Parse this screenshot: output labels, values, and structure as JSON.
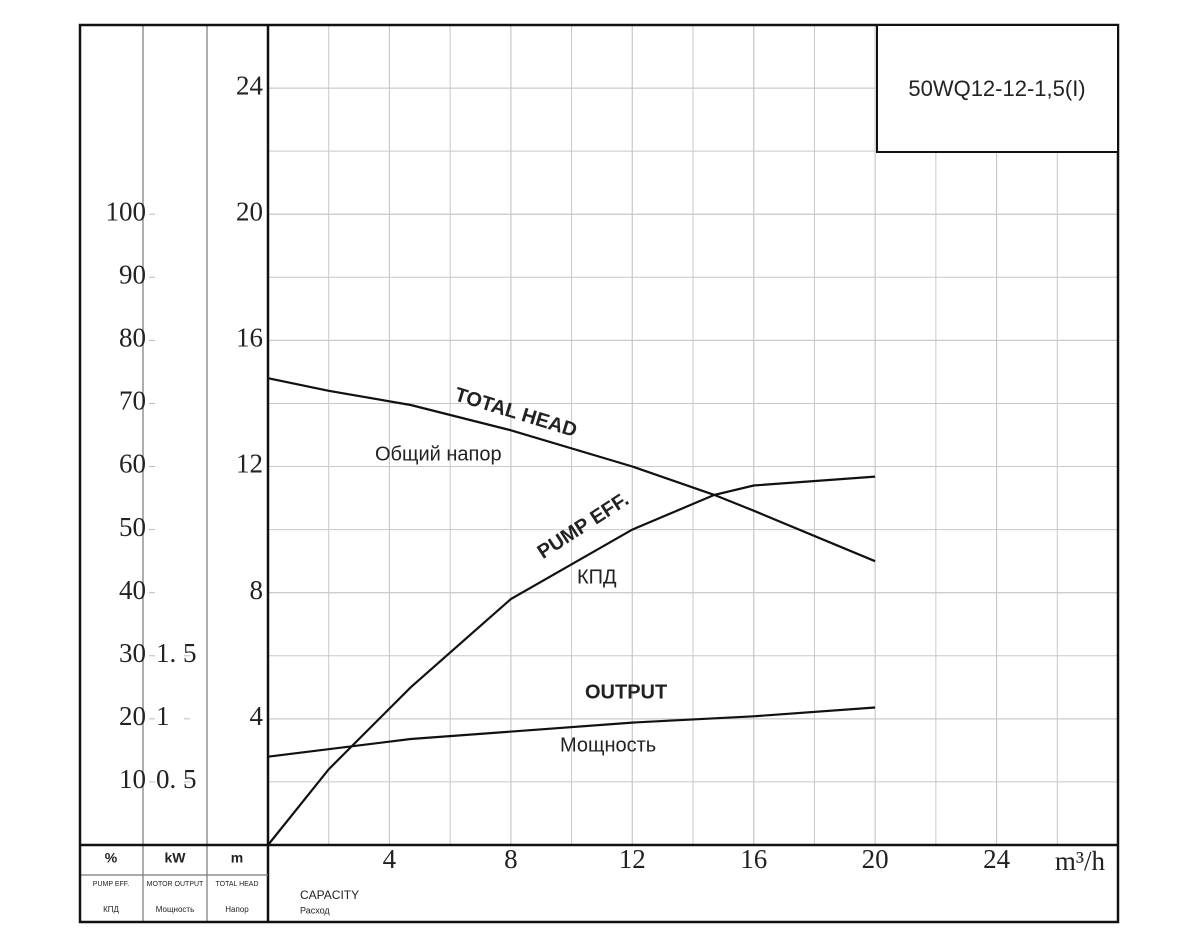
{
  "chart_data": {
    "type": "line",
    "model": "50WQ12-12-1,5(I)",
    "x_unit": "m³/h",
    "x_label": {
      "en": "CAPACITY",
      "ru": "Расход"
    },
    "y_label": {
      "unit": "m",
      "en": "TOTAL HEAD",
      "ru": "Напор"
    },
    "y2_label": {
      "unit": "%",
      "en": "PUMP EFF.",
      "ru": "КПД"
    },
    "y3_label": {
      "unit": "kW",
      "en": "MOTOR OUTPUT",
      "ru": "Мощность"
    },
    "xlim": [
      0,
      28
    ],
    "xticks": [
      4,
      8,
      12,
      16,
      20,
      24
    ],
    "ylim": [
      0,
      26
    ],
    "yticks": [
      4,
      8,
      12,
      16,
      20,
      24
    ],
    "y2lim": [
      0,
      130
    ],
    "y2ticks": [
      10,
      20,
      30,
      40,
      50,
      60,
      70,
      80,
      90,
      100
    ],
    "y3lim": [
      0,
      6.5
    ],
    "y3ticks": [
      {
        "value": 0.5,
        "label": "0. 5"
      },
      1,
      {
        "value": 1.5,
        "label": "1. 5"
      }
    ],
    "grid": true,
    "series": [
      {
        "name": "TOTAL HEAD",
        "name_ru": "Общий напор",
        "color": "#111111",
        "axis": "y",
        "x": [
          0,
          2,
          4.7,
          8,
          12,
          14.7,
          16,
          20
        ],
        "values": [
          14.8,
          14.4,
          13.95,
          13.15,
          12,
          11.1,
          10.6,
          9.0
        ]
      },
      {
        "name": "PUMP EFF.",
        "name_ru": "КПД",
        "color": "#111111",
        "axis": "y2",
        "x": [
          0,
          2,
          4.7,
          8,
          12,
          14.7,
          16,
          20
        ],
        "values": [
          0,
          12,
          25,
          39,
          50,
          55.5,
          57,
          58.4
        ]
      },
      {
        "name": "OUTPUT",
        "name_ru": "Мощность",
        "color": "#111111",
        "axis": "y3",
        "x": [
          0,
          4.7,
          12,
          16,
          20
        ],
        "values": [
          0.7,
          0.84,
          0.97,
          1.02,
          1.09
        ]
      }
    ]
  }
}
